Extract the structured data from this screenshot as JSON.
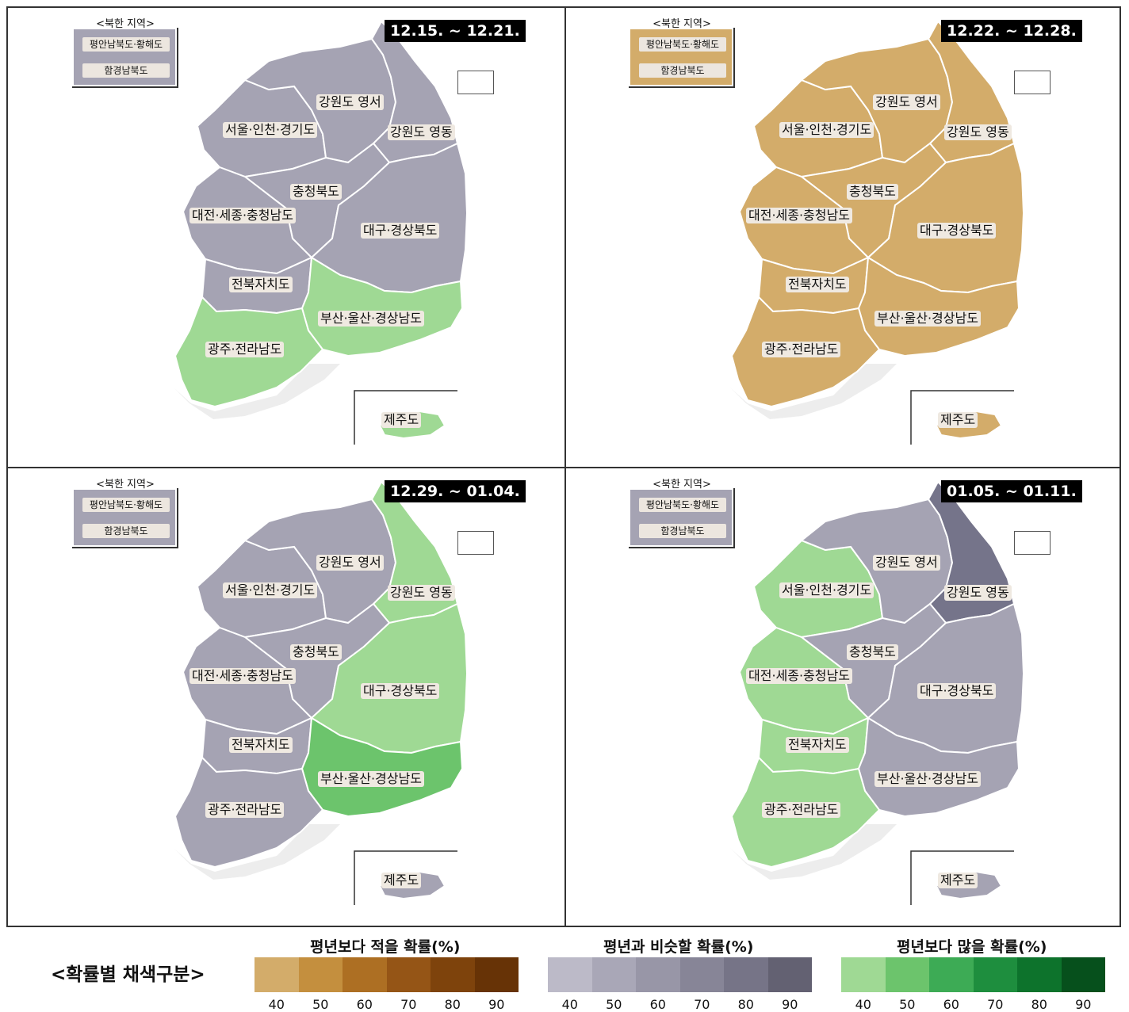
{
  "north_korea_box": {
    "title": "<북한 지역>",
    "labels": [
      "평안남북도·황해도",
      "함경남북도"
    ]
  },
  "region_names": [
    "강원도 영서",
    "서울·인천·경기도",
    "강원도 영동",
    "충청북도",
    "대전·세종·충청남도",
    "대구·경상북도",
    "전북자치도",
    "부산·울산·경상남도",
    "광주·전라남도",
    "제주도"
  ],
  "panels": [
    {
      "date": "12.15. ~ 12.21.",
      "north_korea_colors": [
        "#a5a3b3",
        "#a5a3b3"
      ],
      "region_colors": {
        "gyeonggi": "#a5a3b3",
        "gangwon_west": "#a5a3b3",
        "gangwon_east": "#a5a3b3",
        "chungbuk": "#a5a3b3",
        "chungnam": "#a5a3b3",
        "gyeongbuk": "#a5a3b3",
        "jeonbuk": "#a5a3b3",
        "gyeongnam": "#9fd994",
        "jeonnam": "#9fd994",
        "jeju": "#9fd994"
      }
    },
    {
      "date": "12.22. ~ 12.28.",
      "north_korea_colors": [
        "#d3ac6a",
        "#d3ac6a"
      ],
      "region_colors": {
        "gyeonggi": "#d3ac6a",
        "gangwon_west": "#d3ac6a",
        "gangwon_east": "#d3ac6a",
        "chungbuk": "#d3ac6a",
        "chungnam": "#d3ac6a",
        "gyeongbuk": "#d3ac6a",
        "jeonbuk": "#d3ac6a",
        "gyeongnam": "#d3ac6a",
        "jeonnam": "#d3ac6a",
        "jeju": "#d3ac6a"
      }
    },
    {
      "date": "12.29. ~ 01.04.",
      "north_korea_colors": [
        "#a5a3b3",
        "#a5a3b3"
      ],
      "region_colors": {
        "gyeonggi": "#a5a3b3",
        "gangwon_west": "#a5a3b3",
        "gangwon_east": "#9fd994",
        "chungbuk": "#a5a3b3",
        "chungnam": "#a5a3b3",
        "gyeongbuk": "#9fd994",
        "jeonbuk": "#a5a3b3",
        "gyeongnam": "#6cc46c",
        "jeonnam": "#a5a3b3",
        "jeju": "#a5a3b3"
      }
    },
    {
      "date": "01.05. ~ 01.11.",
      "north_korea_colors": [
        "#a5a3b3",
        "#a5a3b3"
      ],
      "region_colors": {
        "gyeonggi": "#9fd994",
        "gangwon_west": "#a5a3b3",
        "gangwon_east": "#75748a",
        "chungbuk": "#a5a3b3",
        "chungnam": "#9fd994",
        "gyeongbuk": "#a5a3b3",
        "jeonbuk": "#9fd994",
        "gyeongnam": "#a5a3b3",
        "jeonnam": "#9fd994",
        "jeju": "#a5a3b3"
      }
    }
  ],
  "legend": {
    "heading": "<확률별 채색구분>",
    "groups": [
      {
        "title": "평년보다 적을 확률(%)",
        "ticks": [
          "40",
          "50",
          "60",
          "70",
          "80",
          "90"
        ],
        "colors": [
          "#d3ac6a",
          "#c48f3e",
          "#ad6f23",
          "#955516",
          "#7e430c",
          "#673306"
        ]
      },
      {
        "title": "평년과 비슷할 확률(%)",
        "ticks": [
          "40",
          "50",
          "60",
          "70",
          "80",
          "90"
        ],
        "colors": [
          "#bcbac8",
          "#a9a7b7",
          "#9896a7",
          "#878597",
          "#767487",
          "#636172"
        ]
      },
      {
        "title": "평년보다 많을 확률(%)",
        "ticks": [
          "40",
          "50",
          "60",
          "70",
          "80",
          "90"
        ],
        "colors": [
          "#9fd994",
          "#6cc46c",
          "#3dab55",
          "#1e8e3e",
          "#0d732c",
          "#06501c"
        ]
      }
    ]
  }
}
